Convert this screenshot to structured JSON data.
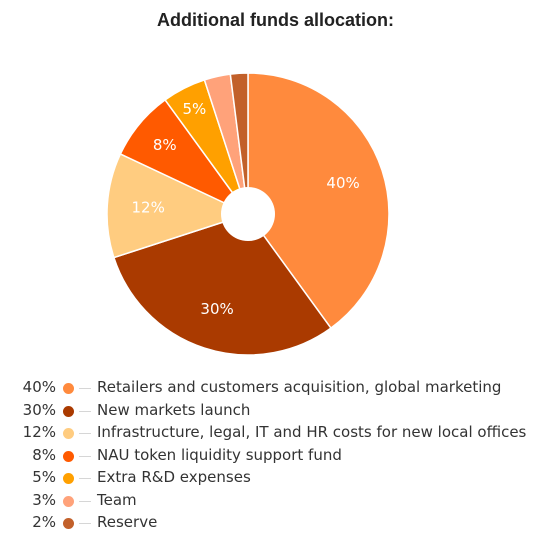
{
  "chart_data": {
    "type": "pie",
    "title": "Additional funds allocation:",
    "donut": true,
    "slices": [
      {
        "label": "Retailers and customers acquisition, global marketing",
        "value": 40,
        "value_label": "40%",
        "color": "#ff8a3d"
      },
      {
        "label": "New markets launch",
        "value": 30,
        "value_label": "30%",
        "color": "#aa3a00"
      },
      {
        "label": "Infrastructure, legal, IT and HR costs for new local offices",
        "value": 12,
        "value_label": "12%",
        "color": "#ffcc80"
      },
      {
        "label": "NAU token liquidity support fund",
        "value": 8,
        "value_label": "8%",
        "color": "#ff5a00"
      },
      {
        "label": "Extra R&D expenses",
        "value": 5,
        "value_label": "5%",
        "color": "#ffa000"
      },
      {
        "label": "Team",
        "value": 3,
        "value_label": "3%",
        "color": "#ffa27a"
      },
      {
        "label": "Reserve",
        "value": 2,
        "value_label": "2%",
        "color": "#c2602a"
      }
    ],
    "legend_position": "bottom-left"
  }
}
